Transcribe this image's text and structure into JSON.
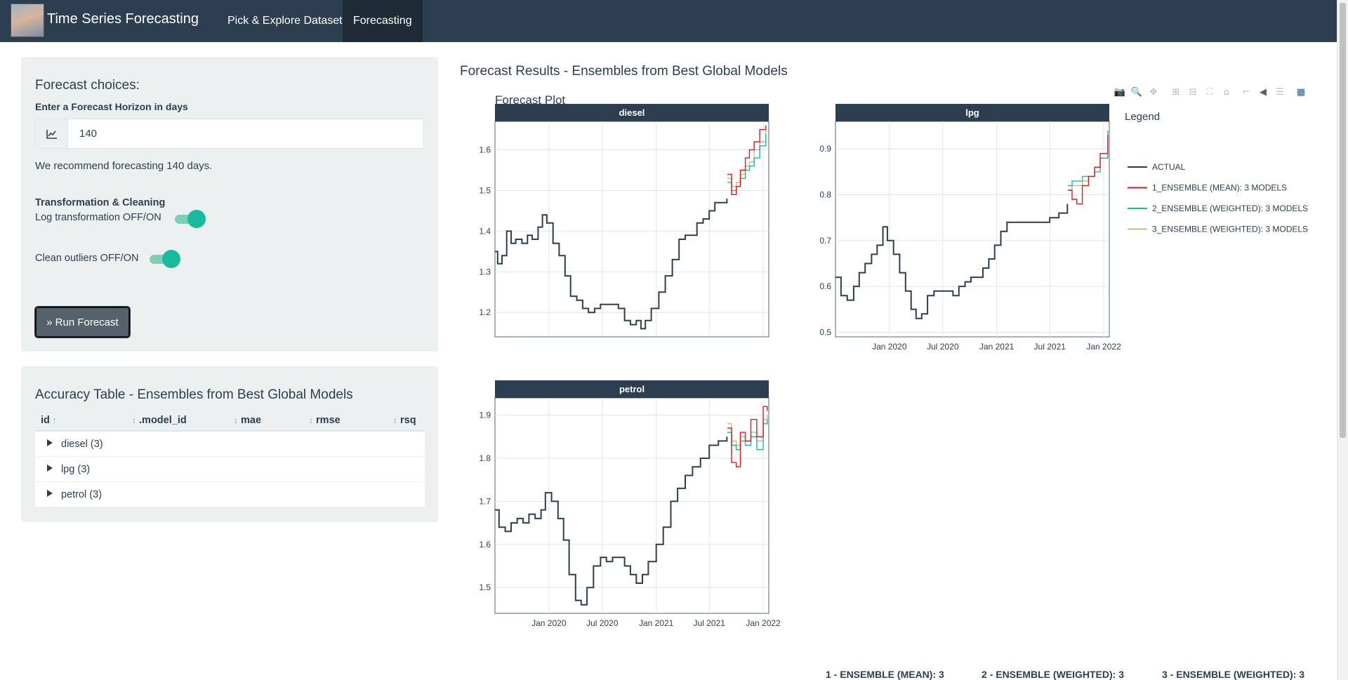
{
  "navbar": {
    "brand": "Time Series Forecasting",
    "tabs": [
      {
        "label": "Pick & Explore Dataset",
        "active": false
      },
      {
        "label": "Forecasting",
        "active": true
      }
    ]
  },
  "sidebar": {
    "title": "Forecast choices:",
    "horizon_label": "Enter a Forecast Horizon in days",
    "horizon_value": "140",
    "recommendation": "We recommend forecasting 140 days.",
    "transform_heading": "Transformation & Cleaning",
    "log_toggle_label": "Log transformation OFF/ON",
    "log_toggle_on": true,
    "clean_toggle_label": "Clean outliers OFF/ON",
    "clean_toggle_on": true,
    "run_button": "Run Forecast"
  },
  "accuracy": {
    "title": "Accuracy Table - Ensembles from Best Global Models",
    "columns": [
      "id",
      ".model_id",
      "mae",
      "rmse",
      "rsq"
    ],
    "sort_asc_glyph": "↑",
    "sort_glyph": "↕",
    "rows": [
      "diesel (3)",
      "lpg (3)",
      "petrol (3)"
    ]
  },
  "forecast": {
    "section_title": "Forecast Results - Ensembles from Best Global Models",
    "plot_title": "Forecast Plot",
    "legend_title": "Legend",
    "bottom_labels": [
      "1 - ENSEMBLE (MEAN): 3",
      "2 - ENSEMBLE (WEIGHTED): 3",
      "3 - ENSEMBLE (WEIGHTED): 3"
    ]
  },
  "colors": {
    "navbar": "#2c3e50",
    "accent": "#18bc9c",
    "actual": "#2c3e50",
    "mean": "#e31a1c",
    "weighted2": "#18bc9c",
    "weighted3": "#c7b784"
  },
  "chart_data": {
    "type": "line",
    "title": "Forecast Plot",
    "x_ticks": [
      "Jan 2020",
      "Jul 2020",
      "Jan 2021",
      "Jul 2021",
      "Jan 2022"
    ],
    "x_range": [
      "2019-07-01",
      "2022-01-20"
    ],
    "series_names": [
      "ACTUAL",
      "1_ENSEMBLE (MEAN): 3 MODELS",
      "2_ENSEMBLE (WEIGHTED): 3 MODELS",
      "3_ENSEMBLE (WEIGHTED): 3 MODELS"
    ],
    "legend_position": "right",
    "grid": true,
    "forecast_start": "2021-08-30",
    "panels": [
      {
        "name": "diesel",
        "ylim": [
          1.14,
          1.67
        ],
        "y_ticks": [
          1.2,
          1.3,
          1.4,
          1.5,
          1.6
        ],
        "actual": [
          [
            "2019-07-01",
            1.35
          ],
          [
            "2019-07-10",
            1.32
          ],
          [
            "2019-07-25",
            1.34
          ],
          [
            "2019-08-10",
            1.4
          ],
          [
            "2019-08-25",
            1.37
          ],
          [
            "2019-09-10",
            1.38
          ],
          [
            "2019-10-01",
            1.37
          ],
          [
            "2019-10-20",
            1.39
          ],
          [
            "2019-11-05",
            1.38
          ],
          [
            "2019-11-25",
            1.41
          ],
          [
            "2019-12-10",
            1.44
          ],
          [
            "2019-12-25",
            1.42
          ],
          [
            "2020-01-15",
            1.37
          ],
          [
            "2020-02-05",
            1.34
          ],
          [
            "2020-02-25",
            1.29
          ],
          [
            "2020-03-15",
            1.24
          ],
          [
            "2020-04-05",
            1.23
          ],
          [
            "2020-04-25",
            1.21
          ],
          [
            "2020-05-15",
            1.2
          ],
          [
            "2020-06-05",
            1.21
          ],
          [
            "2020-06-25",
            1.22
          ],
          [
            "2020-07-15",
            1.22
          ],
          [
            "2020-08-05",
            1.22
          ],
          [
            "2020-08-25",
            1.21
          ],
          [
            "2020-09-15",
            1.18
          ],
          [
            "2020-10-05",
            1.17
          ],
          [
            "2020-10-25",
            1.18
          ],
          [
            "2020-11-10",
            1.16
          ],
          [
            "2020-11-25",
            1.18
          ],
          [
            "2020-12-15",
            1.21
          ],
          [
            "2021-01-10",
            1.25
          ],
          [
            "2021-02-01",
            1.29
          ],
          [
            "2021-02-25",
            1.33
          ],
          [
            "2021-03-20",
            1.38
          ],
          [
            "2021-04-10",
            1.39
          ],
          [
            "2021-05-01",
            1.39
          ],
          [
            "2021-05-20",
            1.42
          ],
          [
            "2021-06-10",
            1.43
          ],
          [
            "2021-07-01",
            1.45
          ],
          [
            "2021-07-20",
            1.47
          ],
          [
            "2021-08-10",
            1.47
          ],
          [
            "2021-08-30",
            1.48
          ]
        ],
        "mean": [
          [
            "2021-09-01",
            1.54
          ],
          [
            "2021-09-15",
            1.49
          ],
          [
            "2021-10-01",
            1.51
          ],
          [
            "2021-10-15",
            1.55
          ],
          [
            "2021-11-01",
            1.58
          ],
          [
            "2021-11-15",
            1.6
          ],
          [
            "2021-12-01",
            1.62
          ],
          [
            "2021-12-20",
            1.65
          ],
          [
            "2022-01-10",
            1.66
          ]
        ],
        "weighted2": [
          [
            "2021-09-01",
            1.52
          ],
          [
            "2021-09-15",
            1.5
          ],
          [
            "2021-10-01",
            1.51
          ],
          [
            "2021-10-15",
            1.53
          ],
          [
            "2021-11-01",
            1.55
          ],
          [
            "2021-11-15",
            1.56
          ],
          [
            "2021-12-01",
            1.58
          ],
          [
            "2021-12-20",
            1.61
          ],
          [
            "2022-01-10",
            1.64
          ]
        ],
        "weighted3": [
          [
            "2021-09-01",
            1.53
          ],
          [
            "2021-09-15",
            1.51
          ],
          [
            "2021-10-01",
            1.52
          ],
          [
            "2021-10-15",
            1.54
          ],
          [
            "2021-11-01",
            1.56
          ],
          [
            "2021-11-15",
            1.57
          ],
          [
            "2021-12-01",
            1.6
          ],
          [
            "2021-12-20",
            1.62
          ],
          [
            "2022-01-10",
            1.65
          ]
        ]
      },
      {
        "name": "lpg",
        "ylim": [
          0.49,
          0.96
        ],
        "y_ticks": [
          0.5,
          0.6,
          0.7,
          0.8,
          0.9
        ],
        "actual": [
          [
            "2019-07-01",
            0.62
          ],
          [
            "2019-07-20",
            0.58
          ],
          [
            "2019-08-10",
            0.57
          ],
          [
            "2019-09-01",
            0.6
          ],
          [
            "2019-09-20",
            0.63
          ],
          [
            "2019-10-10",
            0.65
          ],
          [
            "2019-11-01",
            0.67
          ],
          [
            "2019-11-20",
            0.69
          ],
          [
            "2019-12-10",
            0.73
          ],
          [
            "2019-12-25",
            0.7
          ],
          [
            "2020-01-15",
            0.67
          ],
          [
            "2020-02-05",
            0.63
          ],
          [
            "2020-02-25",
            0.59
          ],
          [
            "2020-03-15",
            0.55
          ],
          [
            "2020-04-01",
            0.53
          ],
          [
            "2020-04-20",
            0.54
          ],
          [
            "2020-05-10",
            0.58
          ],
          [
            "2020-06-01",
            0.59
          ],
          [
            "2020-06-25",
            0.59
          ],
          [
            "2020-07-15",
            0.59
          ],
          [
            "2020-08-05",
            0.58
          ],
          [
            "2020-08-25",
            0.6
          ],
          [
            "2020-09-15",
            0.61
          ],
          [
            "2020-10-05",
            0.62
          ],
          [
            "2020-10-25",
            0.62
          ],
          [
            "2020-11-15",
            0.64
          ],
          [
            "2020-12-05",
            0.66
          ],
          [
            "2020-12-25",
            0.69
          ],
          [
            "2021-01-15",
            0.72
          ],
          [
            "2021-02-05",
            0.74
          ],
          [
            "2021-03-01",
            0.74
          ],
          [
            "2021-04-01",
            0.74
          ],
          [
            "2021-05-01",
            0.74
          ],
          [
            "2021-06-01",
            0.74
          ],
          [
            "2021-07-01",
            0.75
          ],
          [
            "2021-08-01",
            0.76
          ],
          [
            "2021-08-30",
            0.78
          ]
        ],
        "mean": [
          [
            "2021-09-01",
            0.81
          ],
          [
            "2021-09-15",
            0.79
          ],
          [
            "2021-10-01",
            0.78
          ],
          [
            "2021-10-20",
            0.82
          ],
          [
            "2021-11-10",
            0.84
          ],
          [
            "2021-12-01",
            0.86
          ],
          [
            "2021-12-20",
            0.89
          ],
          [
            "2022-01-15",
            0.93
          ]
        ],
        "weighted2": [
          [
            "2021-09-01",
            0.82
          ],
          [
            "2021-09-15",
            0.83
          ],
          [
            "2021-10-01",
            0.83
          ],
          [
            "2021-10-20",
            0.84
          ],
          [
            "2021-11-10",
            0.84
          ],
          [
            "2021-12-01",
            0.85
          ],
          [
            "2021-12-20",
            0.88
          ],
          [
            "2022-01-15",
            0.94
          ]
        ],
        "weighted3": [
          [
            "2021-09-01",
            0.81
          ],
          [
            "2021-09-15",
            0.82
          ],
          [
            "2021-10-01",
            0.82
          ],
          [
            "2021-10-20",
            0.83
          ],
          [
            "2021-11-10",
            0.84
          ],
          [
            "2021-12-01",
            0.86
          ],
          [
            "2021-12-20",
            0.88
          ],
          [
            "2022-01-15",
            0.92
          ]
        ]
      },
      {
        "name": "petrol",
        "ylim": [
          1.44,
          1.94
        ],
        "y_ticks": [
          1.5,
          1.6,
          1.7,
          1.8,
          1.9
        ],
        "actual": [
          [
            "2019-07-01",
            1.68
          ],
          [
            "2019-07-15",
            1.64
          ],
          [
            "2019-08-05",
            1.63
          ],
          [
            "2019-08-25",
            1.65
          ],
          [
            "2019-09-15",
            1.66
          ],
          [
            "2019-10-05",
            1.65
          ],
          [
            "2019-10-25",
            1.67
          ],
          [
            "2019-11-15",
            1.66
          ],
          [
            "2019-12-05",
            1.68
          ],
          [
            "2019-12-20",
            1.72
          ],
          [
            "2020-01-10",
            1.7
          ],
          [
            "2020-02-01",
            1.66
          ],
          [
            "2020-02-20",
            1.61
          ],
          [
            "2020-03-10",
            1.53
          ],
          [
            "2020-04-01",
            1.47
          ],
          [
            "2020-04-20",
            1.46
          ],
          [
            "2020-05-10",
            1.5
          ],
          [
            "2020-06-01",
            1.55
          ],
          [
            "2020-06-25",
            1.57
          ],
          [
            "2020-07-15",
            1.56
          ],
          [
            "2020-08-05",
            1.57
          ],
          [
            "2020-08-25",
            1.57
          ],
          [
            "2020-09-15",
            1.55
          ],
          [
            "2020-10-05",
            1.53
          ],
          [
            "2020-10-25",
            1.51
          ],
          [
            "2020-11-15",
            1.53
          ],
          [
            "2020-12-05",
            1.56
          ],
          [
            "2021-01-01",
            1.6
          ],
          [
            "2021-01-25",
            1.64
          ],
          [
            "2021-02-20",
            1.7
          ],
          [
            "2021-03-15",
            1.73
          ],
          [
            "2021-04-10",
            1.76
          ],
          [
            "2021-05-05",
            1.78
          ],
          [
            "2021-06-01",
            1.8
          ],
          [
            "2021-07-01",
            1.83
          ],
          [
            "2021-08-01",
            1.84
          ],
          [
            "2021-08-30",
            1.85
          ]
        ],
        "mean": [
          [
            "2021-09-01",
            1.87
          ],
          [
            "2021-09-15",
            1.79
          ],
          [
            "2021-10-01",
            1.78
          ],
          [
            "2021-10-15",
            1.86
          ],
          [
            "2021-11-01",
            1.84
          ],
          [
            "2021-11-20",
            1.89
          ],
          [
            "2021-12-10",
            1.85
          ],
          [
            "2022-01-01",
            1.92
          ],
          [
            "2022-01-15",
            1.91
          ]
        ],
        "weighted2": [
          [
            "2021-09-01",
            1.86
          ],
          [
            "2021-09-15",
            1.83
          ],
          [
            "2021-10-01",
            1.82
          ],
          [
            "2021-10-15",
            1.84
          ],
          [
            "2021-11-01",
            1.83
          ],
          [
            "2021-11-20",
            1.85
          ],
          [
            "2021-12-10",
            1.82
          ],
          [
            "2022-01-01",
            1.88
          ],
          [
            "2022-01-15",
            1.89
          ]
        ],
        "weighted3": [
          [
            "2021-09-01",
            1.88
          ],
          [
            "2021-09-15",
            1.84
          ],
          [
            "2021-10-01",
            1.83
          ],
          [
            "2021-10-15",
            1.85
          ],
          [
            "2021-11-01",
            1.84
          ],
          [
            "2021-11-20",
            1.86
          ],
          [
            "2021-12-10",
            1.84
          ],
          [
            "2022-01-01",
            1.89
          ],
          [
            "2022-01-15",
            1.9
          ]
        ]
      }
    ]
  }
}
